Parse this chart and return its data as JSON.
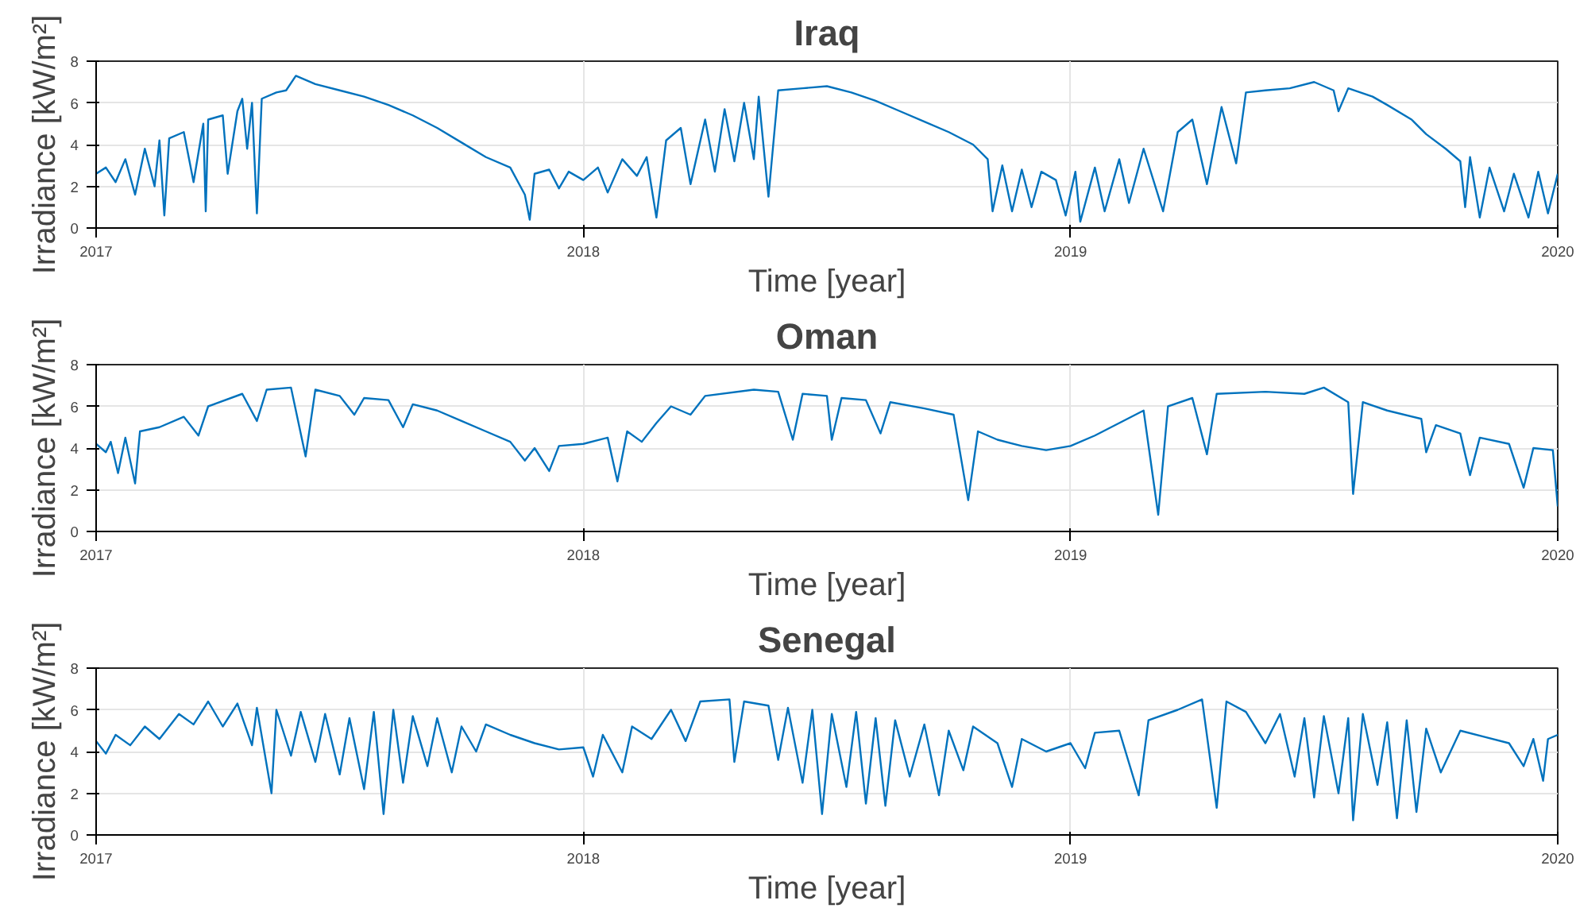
{
  "chart_data": [
    {
      "type": "line",
      "title": "Iraq",
      "xlabel": "Time [year]",
      "ylabel": "Irradiance [kW/m²]",
      "xlim": [
        2017,
        2020
      ],
      "xticks": [
        2017,
        2018,
        2019,
        2020
      ],
      "ylim": [
        0,
        8
      ],
      "yticks": [
        0,
        2,
        4,
        6,
        8
      ],
      "grid": true,
      "line_style": "solid",
      "series": [
        {
          "color": "#0072bd",
          "x": [
            2017.0,
            2017.02,
            2017.04,
            2017.06,
            2017.08,
            2017.1,
            2017.12,
            2017.13,
            2017.14,
            2017.15,
            2017.18,
            2017.2,
            2017.22,
            2017.225,
            2017.23,
            2017.26,
            2017.27,
            2017.29,
            2017.3,
            2017.31,
            2017.32,
            2017.33,
            2017.34,
            2017.37,
            2017.39,
            2017.41,
            2017.45,
            2017.5,
            2017.55,
            2017.6,
            2017.65,
            2017.7,
            2017.75,
            2017.8,
            2017.85,
            2017.88,
            2017.89,
            2017.9,
            2017.93,
            2017.95,
            2017.97,
            2018.0,
            2018.03,
            2018.05,
            2018.08,
            2018.11,
            2018.13,
            2018.15,
            2018.17,
            2018.2,
            2018.22,
            2018.25,
            2018.27,
            2018.29,
            2018.31,
            2018.33,
            2018.35,
            2018.36,
            2018.38,
            2018.4,
            2018.45,
            2018.5,
            2018.55,
            2018.6,
            2018.65,
            2018.7,
            2018.75,
            2018.8,
            2018.83,
            2018.84,
            2018.86,
            2018.88,
            2018.9,
            2018.92,
            2018.94,
            2018.97,
            2018.99,
            2019.01,
            2019.02,
            2019.05,
            2019.07,
            2019.1,
            2019.12,
            2019.15,
            2019.19,
            2019.22,
            2019.25,
            2019.28,
            2019.31,
            2019.34,
            2019.36,
            2019.4,
            2019.45,
            2019.5,
            2019.54,
            2019.55,
            2019.57,
            2019.62,
            2019.65,
            2019.7,
            2019.73,
            2019.77,
            2019.8,
            2019.81,
            2019.82,
            2019.84,
            2019.86,
            2019.89,
            2019.91,
            2019.94,
            2019.96,
            2019.98,
            2020.0
          ],
          "values": [
            2.6,
            2.9,
            2.2,
            3.3,
            1.6,
            3.8,
            2.0,
            4.2,
            0.6,
            4.3,
            4.6,
            2.2,
            5.0,
            0.8,
            5.2,
            5.4,
            2.6,
            5.6,
            6.2,
            3.8,
            6.0,
            0.7,
            6.2,
            6.5,
            6.6,
            7.3,
            6.9,
            6.6,
            6.3,
            5.9,
            5.4,
            4.8,
            4.1,
            3.4,
            2.9,
            1.6,
            0.4,
            2.6,
            2.8,
            1.9,
            2.7,
            2.3,
            2.9,
            1.7,
            3.3,
            2.5,
            3.4,
            0.5,
            4.2,
            4.8,
            2.1,
            5.2,
            2.7,
            5.7,
            3.2,
            6.0,
            3.3,
            6.3,
            1.5,
            6.6,
            6.7,
            6.8,
            6.5,
            6.1,
            5.6,
            5.1,
            4.6,
            4.0,
            3.3,
            0.8,
            3.0,
            0.8,
            2.8,
            1.0,
            2.7,
            2.3,
            0.6,
            2.7,
            0.3,
            2.9,
            0.8,
            3.3,
            1.2,
            3.8,
            0.8,
            4.6,
            5.2,
            2.1,
            5.8,
            3.1,
            6.5,
            6.6,
            6.7,
            7.0,
            6.6,
            5.6,
            6.7,
            6.3,
            5.9,
            5.2,
            4.5,
            3.8,
            3.2,
            1.0,
            3.4,
            0.5,
            2.9,
            0.8,
            2.6,
            0.5,
            2.7,
            0.7,
            2.6
          ]
        }
      ]
    },
    {
      "type": "line",
      "title": "Oman",
      "xlabel": "Time [year]",
      "ylabel": "Irradiance [kW/m²]",
      "xlim": [
        2017,
        2020
      ],
      "xticks": [
        2017,
        2018,
        2019,
        2020
      ],
      "ylim": [
        0,
        8
      ],
      "yticks": [
        0,
        2,
        4,
        6,
        8
      ],
      "grid": true,
      "line_style": "solid",
      "series": [
        {
          "color": "#0072bd",
          "x": [
            2017.0,
            2017.02,
            2017.03,
            2017.045,
            2017.06,
            2017.08,
            2017.09,
            2017.13,
            2017.18,
            2017.21,
            2017.23,
            2017.3,
            2017.33,
            2017.35,
            2017.4,
            2017.43,
            2017.45,
            2017.5,
            2017.53,
            2017.55,
            2017.6,
            2017.63,
            2017.65,
            2017.7,
            2017.75,
            2017.8,
            2017.85,
            2017.88,
            2017.9,
            2017.93,
            2017.95,
            2018.0,
            2018.05,
            2018.07,
            2018.09,
            2018.12,
            2018.15,
            2018.18,
            2018.22,
            2018.25,
            2018.35,
            2018.4,
            2018.43,
            2018.45,
            2018.5,
            2018.51,
            2018.53,
            2018.58,
            2018.61,
            2018.63,
            2018.7,
            2018.76,
            2018.79,
            2018.81,
            2018.85,
            2018.9,
            2018.95,
            2019.0,
            2019.05,
            2019.1,
            2019.15,
            2019.18,
            2019.2,
            2019.25,
            2019.28,
            2019.3,
            2019.4,
            2019.48,
            2019.52,
            2019.57,
            2019.58,
            2019.6,
            2019.65,
            2019.72,
            2019.73,
            2019.75,
            2019.8,
            2019.82,
            2019.84,
            2019.9,
            2019.93,
            2019.95,
            2019.99,
            2020.0
          ],
          "values": [
            4.2,
            3.8,
            4.3,
            2.8,
            4.5,
            2.3,
            4.8,
            5.0,
            5.5,
            4.6,
            6.0,
            6.6,
            5.3,
            6.8,
            6.9,
            3.6,
            6.8,
            6.5,
            5.6,
            6.4,
            6.3,
            5.0,
            6.1,
            5.8,
            5.3,
            4.8,
            4.3,
            3.4,
            4.0,
            2.9,
            4.1,
            4.2,
            4.5,
            2.4,
            4.8,
            4.3,
            5.2,
            6.0,
            5.6,
            6.5,
            6.8,
            6.7,
            4.4,
            6.6,
            6.5,
            4.4,
            6.4,
            6.3,
            4.7,
            6.2,
            5.9,
            5.6,
            1.5,
            4.8,
            4.4,
            4.1,
            3.9,
            4.1,
            4.6,
            5.2,
            5.8,
            0.8,
            6.0,
            6.4,
            3.7,
            6.6,
            6.7,
            6.6,
            6.9,
            6.2,
            1.8,
            6.2,
            5.8,
            5.4,
            3.8,
            5.1,
            4.7,
            2.7,
            4.5,
            4.2,
            2.1,
            4.0,
            3.9,
            1.2
          ]
        }
      ]
    },
    {
      "type": "line",
      "title": "Senegal",
      "xlabel": "Time [year]",
      "ylabel": "Irradiance [kW/m²]",
      "xlim": [
        2017,
        2020
      ],
      "xticks": [
        2017,
        2018,
        2019,
        2020
      ],
      "ylim": [
        0,
        8
      ],
      "yticks": [
        0,
        2,
        4,
        6,
        8
      ],
      "grid": true,
      "line_style": "solid",
      "series": [
        {
          "color": "#0072bd",
          "x": [
            2017.0,
            2017.02,
            2017.04,
            2017.07,
            2017.1,
            2017.13,
            2017.17,
            2017.2,
            2017.23,
            2017.26,
            2017.29,
            2017.32,
            2017.33,
            2017.36,
            2017.37,
            2017.4,
            2017.42,
            2017.45,
            2017.47,
            2017.5,
            2017.52,
            2017.55,
            2017.57,
            2017.59,
            2017.61,
            2017.63,
            2017.65,
            2017.68,
            2017.7,
            2017.73,
            2017.75,
            2017.78,
            2017.8,
            2017.85,
            2017.9,
            2017.95,
            2018.0,
            2018.02,
            2018.04,
            2018.08,
            2018.1,
            2018.14,
            2018.18,
            2018.21,
            2018.24,
            2018.3,
            2018.31,
            2018.33,
            2018.38,
            2018.4,
            2018.42,
            2018.45,
            2018.47,
            2018.49,
            2018.51,
            2018.54,
            2018.56,
            2018.58,
            2018.6,
            2018.62,
            2018.64,
            2018.67,
            2018.7,
            2018.73,
            2018.75,
            2018.78,
            2018.8,
            2018.85,
            2018.88,
            2018.9,
            2018.95,
            2019.0,
            2019.03,
            2019.05,
            2019.1,
            2019.14,
            2019.16,
            2019.22,
            2019.27,
            2019.3,
            2019.32,
            2019.36,
            2019.4,
            2019.43,
            2019.46,
            2019.48,
            2019.5,
            2019.52,
            2019.55,
            2019.57,
            2019.58,
            2019.6,
            2019.63,
            2019.65,
            2019.67,
            2019.69,
            2019.71,
            2019.73,
            2019.76,
            2019.8,
            2019.85,
            2019.9,
            2019.93,
            2019.95,
            2019.97,
            2019.98,
            2020.0
          ],
          "values": [
            4.5,
            3.9,
            4.8,
            4.3,
            5.2,
            4.6,
            5.8,
            5.3,
            6.4,
            5.2,
            6.3,
            4.3,
            6.1,
            2.0,
            6.0,
            3.8,
            5.9,
            3.5,
            5.8,
            2.9,
            5.6,
            2.2,
            5.9,
            1.0,
            6.0,
            2.5,
            5.7,
            3.3,
            5.6,
            3.0,
            5.2,
            4.0,
            5.3,
            4.8,
            4.4,
            4.1,
            4.2,
            2.8,
            4.8,
            3.0,
            5.2,
            4.6,
            6.0,
            4.5,
            6.4,
            6.5,
            3.5,
            6.4,
            6.2,
            3.6,
            6.1,
            2.5,
            6.0,
            1.0,
            5.8,
            2.3,
            5.9,
            1.5,
            5.6,
            1.4,
            5.5,
            2.8,
            5.3,
            1.9,
            5.0,
            3.1,
            5.2,
            4.4,
            2.3,
            4.6,
            4.0,
            4.4,
            3.2,
            4.9,
            5.0,
            1.9,
            5.5,
            6.0,
            6.5,
            1.3,
            6.4,
            5.9,
            4.4,
            5.8,
            2.8,
            5.6,
            1.8,
            5.7,
            2.0,
            5.6,
            0.7,
            5.8,
            2.4,
            5.4,
            0.8,
            5.5,
            1.1,
            5.1,
            3.0,
            5.0,
            4.7,
            4.4,
            3.3,
            4.6,
            2.6,
            4.6,
            4.8
          ]
        }
      ]
    }
  ]
}
